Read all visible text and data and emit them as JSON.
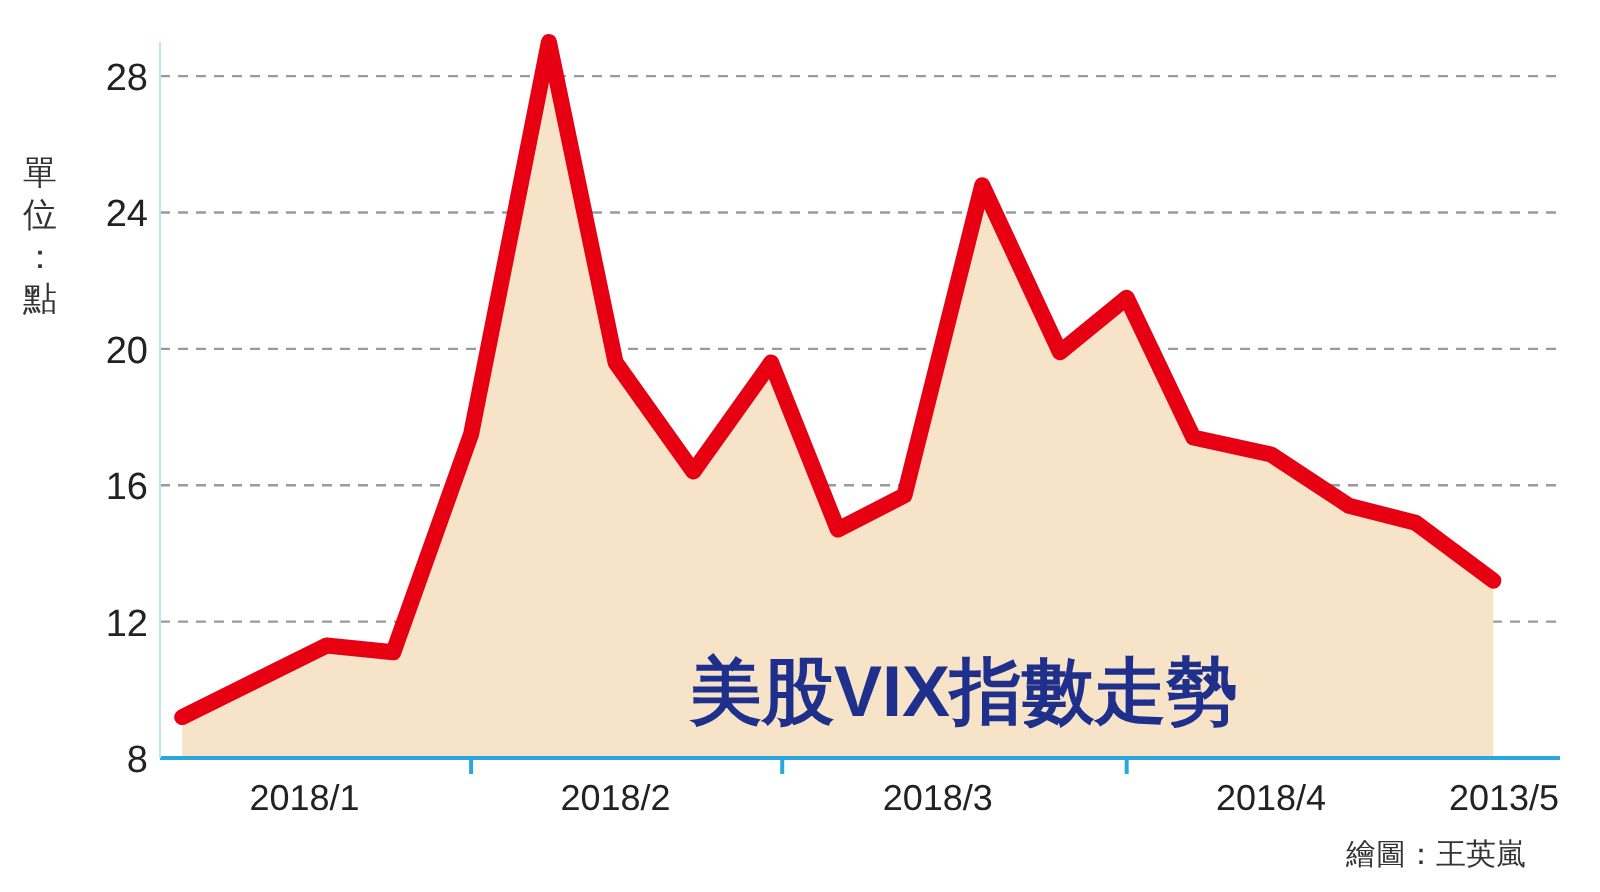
{
  "chart_data": {
    "type": "area",
    "title": "美股VIX指數走勢",
    "ylabel": "單位：點",
    "annotations": [
      "2013/5",
      "繪圖：王英嵐"
    ],
    "x": [
      "2018-01-06",
      "2018-01-19",
      "2018-01-25",
      "2018-02-01",
      "2018-02-08",
      "2018-02-14",
      "2018-02-21",
      "2018-02-28",
      "2018-03-06",
      "2018-03-12",
      "2018-03-19",
      "2018-03-26",
      "2018-04-01",
      "2018-04-07",
      "2018-04-14",
      "2018-04-21",
      "2018-04-27",
      "2018-05-04"
    ],
    "series": [
      {
        "color": "#e60012",
        "values": [
          9.2,
          11.3,
          11.1,
          17.5,
          29.0,
          19.6,
          16.4,
          19.6,
          14.7,
          15.7,
          24.8,
          19.9,
          21.5,
          17.4,
          16.9,
          15.4,
          14.9,
          13.2
        ]
      }
    ],
    "xlim": [
      "2018-01-04",
      "2018-05-10"
    ],
    "xticks": [
      {
        "value": "2018-01-17",
        "label": "2018/1"
      },
      {
        "value": "2018-02-01",
        "label": null
      },
      {
        "value": "2018-02-14",
        "label": "2018/2"
      },
      {
        "value": "2018-03-01",
        "label": null
      },
      {
        "value": "2018-03-15",
        "label": "2018/3"
      },
      {
        "value": "2018-04-01",
        "label": null
      },
      {
        "value": "2018-04-14",
        "label": "2018/4"
      }
    ],
    "ylim": [
      8,
      29
    ],
    "yticks": [
      8,
      12,
      16,
      20,
      24,
      28
    ],
    "grid": "y"
  }
}
